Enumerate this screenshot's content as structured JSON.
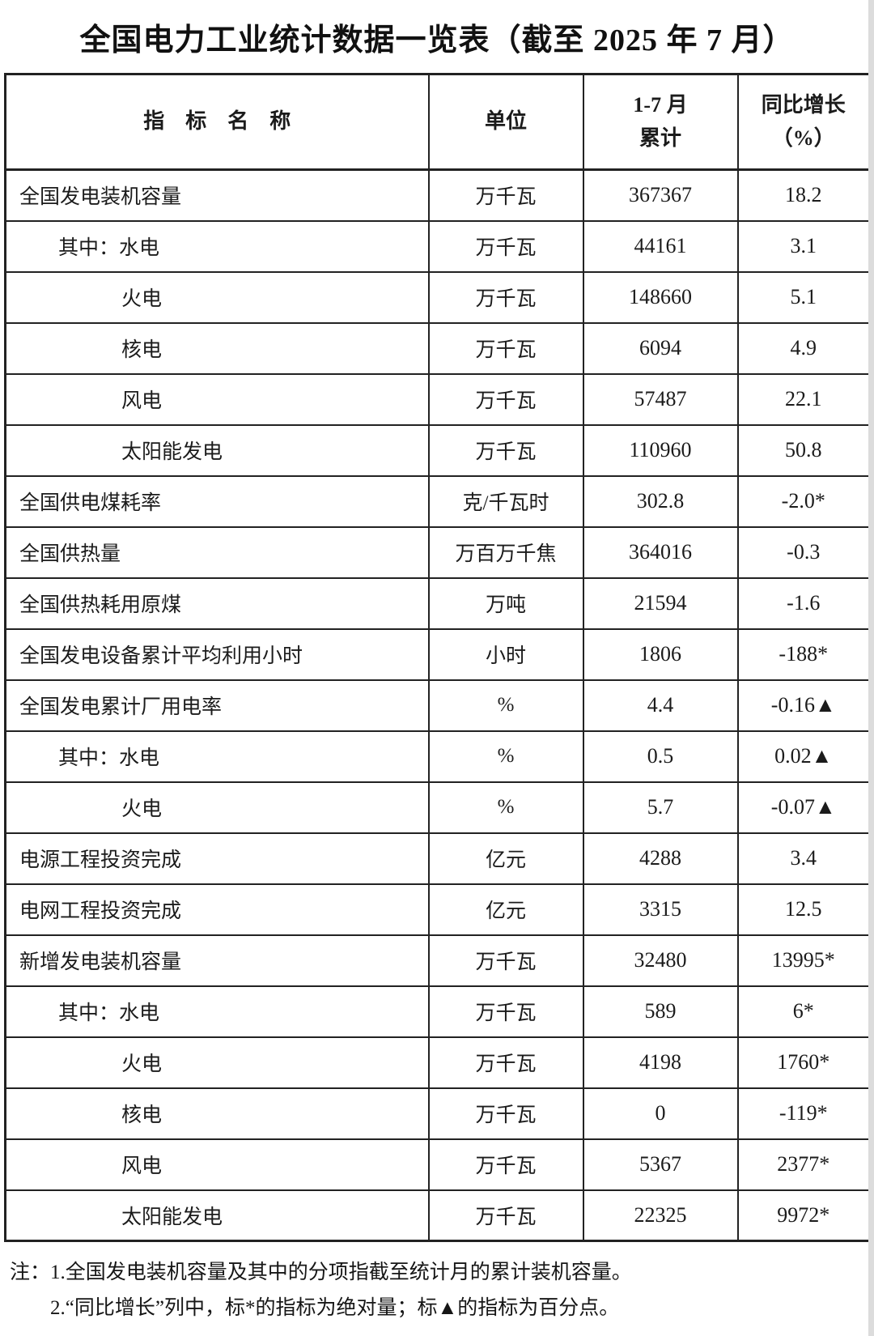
{
  "title": "全国电力工业统计数据一览表（截至 2025 年 7 月）",
  "table": {
    "headers": {
      "indicator": "指　标　名　称",
      "unit": "单位",
      "period": "1-7 月\n累计",
      "yoy": "同比增长\n（%）"
    },
    "rows": [
      {
        "indicator": "全国发电装机容量",
        "indent": 0,
        "unit": "万千瓦",
        "value": "367367",
        "yoy": "18.2"
      },
      {
        "indicator": "其中：水电",
        "indent": 1,
        "unit": "万千瓦",
        "value": "44161",
        "yoy": "3.1"
      },
      {
        "indicator": "火电",
        "indent": 2,
        "unit": "万千瓦",
        "value": "148660",
        "yoy": "5.1"
      },
      {
        "indicator": "核电",
        "indent": 2,
        "unit": "万千瓦",
        "value": "6094",
        "yoy": "4.9"
      },
      {
        "indicator": "风电",
        "indent": 2,
        "unit": "万千瓦",
        "value": "57487",
        "yoy": "22.1"
      },
      {
        "indicator": "太阳能发电",
        "indent": 2,
        "unit": "万千瓦",
        "value": "110960",
        "yoy": "50.8"
      },
      {
        "indicator": "全国供电煤耗率",
        "indent": 0,
        "unit": "克/千瓦时",
        "value": "302.8",
        "yoy": "-2.0*"
      },
      {
        "indicator": "全国供热量",
        "indent": 0,
        "unit": "万百万千焦",
        "value": "364016",
        "yoy": "-0.3"
      },
      {
        "indicator": "全国供热耗用原煤",
        "indent": 0,
        "unit": "万吨",
        "value": "21594",
        "yoy": "-1.6"
      },
      {
        "indicator": "全国发电设备累计平均利用小时",
        "indent": 0,
        "unit": "小时",
        "value": "1806",
        "yoy": "-188*"
      },
      {
        "indicator": "全国发电累计厂用电率",
        "indent": 0,
        "unit": "%",
        "value": "4.4",
        "yoy": "-0.16▲"
      },
      {
        "indicator": "其中：水电",
        "indent": 1,
        "unit": "%",
        "value": "0.5",
        "yoy": "0.02▲"
      },
      {
        "indicator": "火电",
        "indent": 2,
        "unit": "%",
        "value": "5.7",
        "yoy": "-0.07▲"
      },
      {
        "indicator": "电源工程投资完成",
        "indent": 0,
        "unit": "亿元",
        "value": "4288",
        "yoy": "3.4"
      },
      {
        "indicator": "电网工程投资完成",
        "indent": 0,
        "unit": "亿元",
        "value": "3315",
        "yoy": "12.5"
      },
      {
        "indicator": "新增发电装机容量",
        "indent": 0,
        "unit": "万千瓦",
        "value": "32480",
        "yoy": "13995*"
      },
      {
        "indicator": "其中：水电",
        "indent": 1,
        "unit": "万千瓦",
        "value": "589",
        "yoy": "6*"
      },
      {
        "indicator": "火电",
        "indent": 2,
        "unit": "万千瓦",
        "value": "4198",
        "yoy": "1760*"
      },
      {
        "indicator": "核电",
        "indent": 2,
        "unit": "万千瓦",
        "value": "0",
        "yoy": "-119*"
      },
      {
        "indicator": "风电",
        "indent": 2,
        "unit": "万千瓦",
        "value": "5367",
        "yoy": "2377*"
      },
      {
        "indicator": "太阳能发电",
        "indent": 2,
        "unit": "万千瓦",
        "value": "22325",
        "yoy": "9972*"
      }
    ]
  },
  "notes": {
    "line1": "注：1.全国发电装机容量及其中的分项指截至统计月的累计装机容量。",
    "line2": "2.“同比增长”列中，标*的指标为绝对量；标▲的指标为百分点。"
  }
}
